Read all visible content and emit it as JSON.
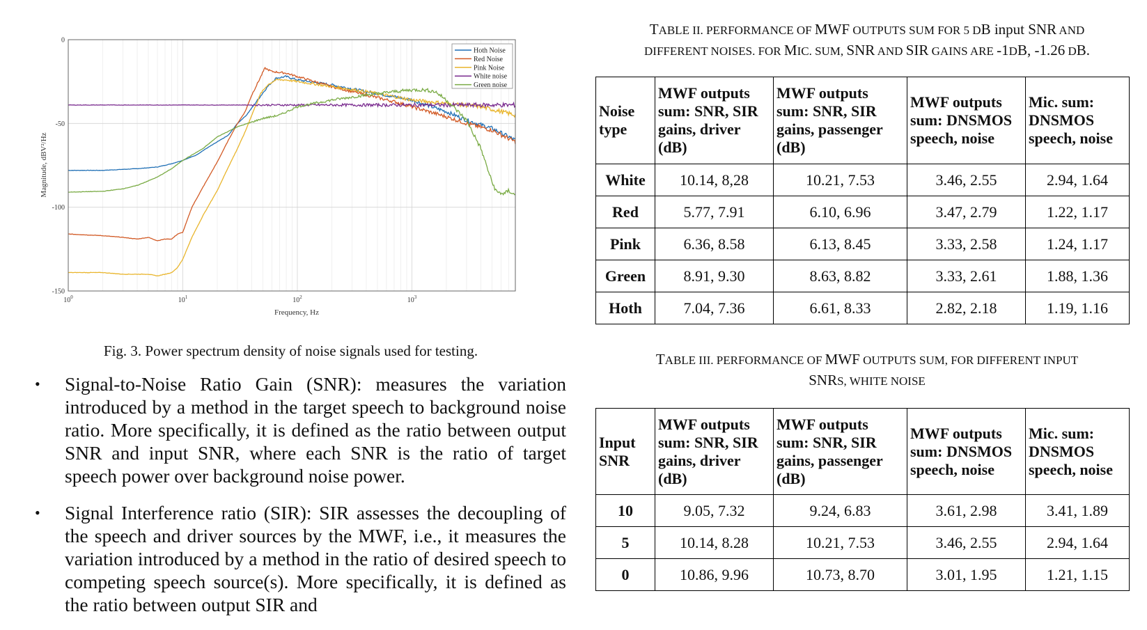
{
  "figure": {
    "caption": "Fig. 3. Power spectrum density of noise signals used for testing.",
    "chart_data": {
      "type": "line",
      "xlabel": "Frequency, Hz",
      "ylabel": "Magnitude, dBV²/Hz",
      "xscale": "log",
      "xlim": [
        1,
        8000
      ],
      "ylim": [
        -150,
        0
      ],
      "yticks": [
        "0",
        "-50",
        "-100",
        "-150"
      ],
      "xticks": [
        {
          "base": "10",
          "exp": "0",
          "value": 1
        },
        {
          "base": "10",
          "exp": "1",
          "value": 10
        },
        {
          "base": "10",
          "exp": "2",
          "value": 100
        },
        {
          "base": "10",
          "exp": "3",
          "value": 1000
        }
      ],
      "grid": true,
      "legend_position": "top-right",
      "series": [
        {
          "name": "Hoth Noise",
          "color": "#1f6fb5",
          "points": [
            [
              1,
              -78
            ],
            [
              2,
              -78
            ],
            [
              4,
              -77
            ],
            [
              6,
              -76
            ],
            [
              8,
              -74
            ],
            [
              10,
              -72
            ],
            [
              13,
              -69
            ],
            [
              16,
              -65
            ],
            [
              20,
              -61
            ],
            [
              25,
              -57
            ],
            [
              30,
              -50
            ],
            [
              36,
              -45
            ],
            [
              45,
              -36
            ],
            [
              55,
              -28
            ],
            [
              65,
              -23
            ],
            [
              80,
              -22
            ],
            [
              100,
              -24
            ],
            [
              200,
              -27
            ],
            [
              400,
              -31
            ],
            [
              700,
              -34
            ],
            [
              1000,
              -36
            ],
            [
              2000,
              -43
            ],
            [
              3000,
              -48
            ],
            [
              5000,
              -53
            ],
            [
              8000,
              -60
            ]
          ]
        },
        {
          "name": "Red Noise",
          "color": "#d25a25",
          "points": [
            [
              1,
              -116
            ],
            [
              2,
              -117
            ],
            [
              3,
              -118
            ],
            [
              4,
              -119
            ],
            [
              5,
              -118
            ],
            [
              6,
              -120
            ],
            [
              7,
              -119
            ],
            [
              8,
              -119
            ],
            [
              9,
              -116
            ],
            [
              10,
              -115
            ],
            [
              12,
              -100
            ],
            [
              15,
              -88
            ],
            [
              20,
              -73
            ],
            [
              25,
              -60
            ],
            [
              30,
              -50
            ],
            [
              35,
              -43
            ],
            [
              40,
              -33
            ],
            [
              48,
              -22
            ],
            [
              52,
              -17
            ],
            [
              60,
              -19
            ],
            [
              80,
              -20
            ],
            [
              100,
              -22
            ],
            [
              200,
              -28
            ],
            [
              400,
              -33
            ],
            [
              700,
              -37
            ],
            [
              1000,
              -40
            ],
            [
              2000,
              -46
            ],
            [
              3000,
              -50
            ],
            [
              5000,
              -54
            ],
            [
              8000,
              -61
            ]
          ]
        },
        {
          "name": "Pink Noise",
          "color": "#e9b52c",
          "points": [
            [
              1,
              -139
            ],
            [
              2,
              -139
            ],
            [
              3,
              -140
            ],
            [
              4,
              -140
            ],
            [
              5,
              -140
            ],
            [
              6,
              -141
            ],
            [
              7,
              -140
            ],
            [
              8,
              -139
            ],
            [
              9,
              -136
            ],
            [
              10,
              -131
            ],
            [
              12,
              -118
            ],
            [
              15,
              -105
            ],
            [
              20,
              -90
            ],
            [
              25,
              -76
            ],
            [
              30,
              -65
            ],
            [
              35,
              -55
            ],
            [
              40,
              -45
            ],
            [
              48,
              -32
            ],
            [
              55,
              -27
            ],
            [
              65,
              -24
            ],
            [
              80,
              -24
            ],
            [
              100,
              -25
            ],
            [
              200,
              -28
            ],
            [
              400,
              -31
            ],
            [
              700,
              -34
            ],
            [
              1000,
              -36
            ],
            [
              2000,
              -38
            ],
            [
              4000,
              -40
            ],
            [
              8000,
              -45
            ]
          ]
        },
        {
          "name": "White noise",
          "color": "#7a2b8f",
          "points": [
            [
              1,
              -39
            ],
            [
              3,
              -39
            ],
            [
              10,
              -39
            ],
            [
              30,
              -39
            ],
            [
              100,
              -39
            ],
            [
              300,
              -39
            ],
            [
              1000,
              -39
            ],
            [
              3000,
              -39
            ],
            [
              8000,
              -39
            ]
          ]
        },
        {
          "name": "Green noise",
          "color": "#7aab45",
          "points": [
            [
              1,
              -91
            ],
            [
              2,
              -90.5
            ],
            [
              3,
              -89
            ],
            [
              4,
              -87
            ],
            [
              6,
              -82
            ],
            [
              8,
              -77
            ],
            [
              10,
              -72
            ],
            [
              15,
              -65
            ],
            [
              20,
              -58
            ],
            [
              30,
              -52
            ],
            [
              50,
              -47
            ],
            [
              70,
              -45
            ],
            [
              100,
              -40
            ],
            [
              200,
              -36
            ],
            [
              400,
              -33
            ],
            [
              700,
              -31
            ],
            [
              1000,
              -30
            ],
            [
              1300,
              -30
            ],
            [
              1600,
              -31
            ],
            [
              2000,
              -36
            ],
            [
              3000,
              -48
            ],
            [
              4000,
              -65
            ],
            [
              5000,
              -85
            ],
            [
              5500,
              -91
            ],
            [
              6500,
              -92
            ],
            [
              7000,
              -90
            ],
            [
              8000,
              -93
            ]
          ]
        }
      ]
    }
  },
  "bullets": [
    "Signal-to-Noise Ratio Gain (SNR): measures the variation introduced by a method in the target speech to background noise ratio. More specifically, it is defined as the ratio between output SNR and input SNR, where each SNR is the ratio of target speech power over background noise power.",
    "Signal Interference ratio (SIR): SIR assesses the decoupling of the speech and driver sources by the MWF, i.e., it measures the variation introduced by a method in the ratio of desired speech to competing speech source(s). More specifically, it is defined as the ratio between output SIR and"
  ],
  "table2": {
    "caption_line1_a": "T",
    "caption_line1_b": "able II. Performance of ",
    "caption_line1_c": "MWF",
    "caption_line1_d": " outputs sum for 5 ",
    "caption_line1_e": "d",
    "caption_line1_f": "B input ",
    "caption_line1_g": "SNR",
    "caption_line1_h": " and",
    "caption_line2_a": "different noises. for ",
    "caption_line2_b": "M",
    "caption_line2_c": "ic. sum, ",
    "caption_line2_d": "SNR",
    "caption_line2_e": " and ",
    "caption_line2_f": "SIR",
    "caption_line2_g": " gains are ",
    "caption_line2_h": "-1",
    "caption_line2_i": "d",
    "caption_line2_j": "B, ",
    "caption_line2_k": "-1.26",
    "caption_line2_l": " d",
    "caption_line2_m": "B.",
    "headers": [
      "Noise type",
      "MWF outputs sum: SNR, SIR gains, driver  (dB)",
      "MWF outputs sum: SNR, SIR gains, passenger (dB)",
      "MWF outputs sum: DNSMOS speech, noise",
      "Mic. sum: DNSMOS speech, noise"
    ],
    "rows": [
      [
        "White",
        "10.14, 8,28",
        "10.21, 7.53",
        "3.46, 2.55",
        "2.94, 1.64"
      ],
      [
        "Red",
        "5.77, 7.91",
        "6.10, 6.96",
        "3.47, 2.79",
        "1.22, 1.17"
      ],
      [
        "Pink",
        "6.36, 8.58",
        "6.13, 8.45",
        "3.33, 2.58",
        "1.24, 1.17"
      ],
      [
        "Green",
        "8.91, 9.30",
        "8.63, 8.82",
        "3.33, 2.61",
        "1.88, 1.36"
      ],
      [
        "Hoth",
        "7.04, 7.36",
        "6.61, 8.33",
        "2.82, 2.18",
        "1.19, 1.16"
      ]
    ]
  },
  "table3": {
    "caption_line1_a": "T",
    "caption_line1_b": "able III. Performance of ",
    "caption_line1_c": "MWF",
    "caption_line1_d": " outputs sum, for different input",
    "caption_line2_a": "SNR",
    "caption_line2_b": "s, white noise",
    "headers": [
      "Input SNR",
      "MWF outputs sum: SNR, SIR gains, driver (dB)",
      "MWF outputs sum: SNR, SIR gains, passenger (dB)",
      "MWF outputs sum: DNSMOS speech, noise",
      "Mic. sum: DNSMOS speech, noise"
    ],
    "rows": [
      [
        "10",
        "9.05, 7.32",
        "9.24, 6.83",
        "3.61, 2.98",
        "3.41, 1.89"
      ],
      [
        "5",
        "10.14, 8.28",
        "10.21, 7.53",
        "3.46, 2.55",
        "2.94, 1.64"
      ],
      [
        "0",
        "10.86, 9.96",
        "10.73, 8.70",
        "3.01, 1.95",
        "1.21, 1.15"
      ]
    ]
  }
}
